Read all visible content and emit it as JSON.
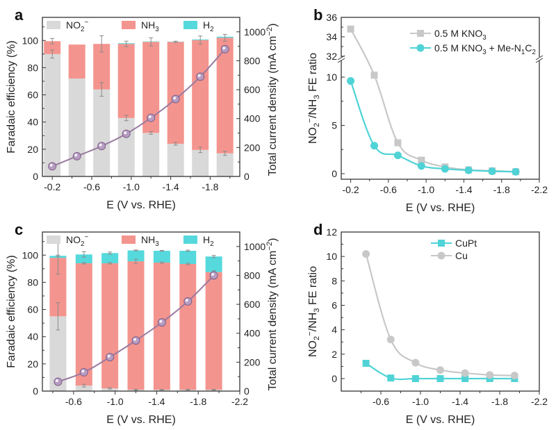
{
  "colors": {
    "no2": "#d9d9d9",
    "nh3": "#f4948e",
    "h2": "#55d9dc",
    "current_line": "#9a7aa0",
    "current_marker": "#b79cc2",
    "gray_series": "#c8c8c8",
    "teal_series": "#4fd3d6",
    "axis": "#333333"
  },
  "chart_data": [
    {
      "id": "a",
      "panel_label": "a",
      "type": "bar",
      "stacked": true,
      "title": "",
      "xlabel": "E (V vs. RHE)",
      "ylabel": "Faradaic efficiency (%)",
      "y2label": "Total current density (mA cm⁻²)",
      "xlim": [
        -0.1,
        -2.1
      ],
      "xticks": [
        "-0.2",
        "-0.6",
        "-1.0",
        "-1.4",
        "-1.8"
      ],
      "xtick_values": [
        -0.2,
        -0.6,
        -1.0,
        -1.4,
        -1.8
      ],
      "ylim": [
        0,
        117
      ],
      "yticks": [
        0,
        20,
        40,
        60,
        80,
        100
      ],
      "y2lim": [
        0,
        1100
      ],
      "y2ticks": [
        0,
        200,
        400,
        600,
        800,
        1000
      ],
      "legend": [
        "NO₂⁻",
        "NH₃",
        "H₂"
      ],
      "legend_placement": "top-left",
      "x": [
        -0.2,
        -0.45,
        -0.7,
        -0.95,
        -1.2,
        -1.45,
        -1.7,
        -1.95
      ],
      "series": [
        {
          "name": "NO2-",
          "values": [
            90,
            72,
            64,
            43,
            32,
            24,
            19.5,
            17
          ],
          "err": [
            3,
            0,
            5,
            2,
            1,
            1,
            2,
            1.5
          ]
        },
        {
          "name": "NH3",
          "values": [
            9.5,
            25,
            33.5,
            54.5,
            67,
            75,
            80.8,
            85
          ],
          "err": [
            2,
            0,
            6,
            2,
            3,
            0.5,
            3,
            2.5
          ]
        },
        {
          "name": "H2",
          "values": [
            0,
            0,
            0,
            0.5,
            0.3,
            0.2,
            0.5,
            0.8
          ]
        }
      ],
      "line": {
        "name": "Total current density",
        "axis": "right",
        "values": [
          70,
          140,
          210,
          295,
          405,
          535,
          690,
          880
        ]
      }
    },
    {
      "id": "b",
      "panel_label": "b",
      "type": "line",
      "title": "",
      "xlabel": "E (V vs. RHE)",
      "ylabel": "NO₂⁻/NH₃ FE ratio",
      "xlim": [
        -0.1,
        -2.2
      ],
      "xticks": [
        "-0.2",
        "-0.6",
        "-1.0",
        "-1.4",
        "-1.8",
        "-2.2"
      ],
      "xtick_values": [
        -0.2,
        -0.6,
        -1.0,
        -1.4,
        -1.8,
        -2.2
      ],
      "y_break": {
        "lower": [
          -0.4,
          12.5
        ],
        "upper": [
          32,
          36
        ]
      },
      "yticks_lower": [
        0,
        5,
        10
      ],
      "yticks_upper": [
        32,
        34,
        36
      ],
      "legend_placement": "top-right",
      "x": [
        -0.2,
        -0.45,
        -0.7,
        -0.95,
        -1.2,
        -1.45,
        -1.7,
        -1.95
      ],
      "series": [
        {
          "name": "0.5 M KNO₃",
          "marker": "square",
          "color_key": "gray_series",
          "values": [
            34.8,
            10.2,
            3.2,
            1.4,
            0.7,
            0.4,
            0.3,
            0.2
          ]
        },
        {
          "name": "0.5 M KNO₃ + Me-N₁C₂",
          "marker": "circle",
          "color_key": "teal_series",
          "values": [
            9.6,
            2.9,
            1.9,
            0.8,
            0.5,
            0.35,
            0.25,
            0.2
          ]
        }
      ]
    },
    {
      "id": "c",
      "panel_label": "c",
      "type": "bar",
      "stacked": true,
      "title": "",
      "xlabel": "E (V vs. RHE)",
      "ylabel": "Faradaic efficiency (%)",
      "y2label": "Total current density (mA cm⁻²)",
      "xlim": [
        -0.3,
        -2.2
      ],
      "xticks": [
        "-0.6",
        "-1.0",
        "-1.4",
        "-1.8",
        "-2.2"
      ],
      "xtick_values": [
        -0.6,
        -1.0,
        -1.4,
        -1.8,
        -2.2
      ],
      "ylim": [
        0,
        117
      ],
      "yticks": [
        0,
        20,
        40,
        60,
        80,
        100
      ],
      "y2lim": [
        0,
        1100
      ],
      "y2ticks": [
        0,
        200,
        400,
        600,
        800,
        1000
      ],
      "legend": [
        "NO₂⁻",
        "NH₃",
        "H₂"
      ],
      "legend_placement": "top-left",
      "x": [
        -0.45,
        -0.7,
        -0.95,
        -1.2,
        -1.45,
        -1.7,
        -1.95
      ],
      "series": [
        {
          "name": "NO2-",
          "values": [
            55,
            4,
            2,
            1,
            1,
            1,
            1
          ],
          "err": [
            10,
            1,
            0.5,
            0.3,
            0.3,
            0.3,
            0.3
          ]
        },
        {
          "name": "NH3",
          "values": [
            43,
            90,
            92,
            94.5,
            93.5,
            92.5,
            86.5
          ],
          "err": [
            12,
            0.5,
            0.5,
            1.5,
            0.5,
            0.5,
            1
          ]
        },
        {
          "name": "H2",
          "values": [
            1.5,
            6.5,
            7.5,
            8,
            8.7,
            9.7,
            11.5
          ],
          "err": [
            0.5,
            2,
            0.8,
            0.3,
            0.3,
            0.5,
            0.8
          ]
        }
      ],
      "line": {
        "name": "Total current density",
        "axis": "right",
        "values": [
          65,
          130,
          235,
          350,
          475,
          620,
          800
        ]
      }
    },
    {
      "id": "d",
      "panel_label": "d",
      "type": "line",
      "title": "",
      "xlabel": "E (V vs. RHE)",
      "ylabel": "NO₂⁻/NH₃ FE ratio",
      "xlim": [
        -0.2,
        -2.2
      ],
      "xticks": [
        "-0.6",
        "-1.0",
        "-1.4",
        "-1.8",
        "-2.2"
      ],
      "xtick_values": [
        -0.6,
        -1.0,
        -1.4,
        -1.8,
        -2.2
      ],
      "ylim": [
        -1,
        12
      ],
      "yticks": [
        0,
        2,
        4,
        6,
        8,
        10,
        12
      ],
      "legend_placement": "top-right",
      "x": [
        -0.45,
        -0.7,
        -0.95,
        -1.2,
        -1.45,
        -1.7,
        -1.95
      ],
      "series": [
        {
          "name": "CuPt",
          "marker": "square",
          "color_key": "teal_series",
          "values": [
            1.25,
            0.05,
            0,
            0,
            0,
            0,
            0
          ]
        },
        {
          "name": "Cu",
          "marker": "circle",
          "color_key": "gray_series",
          "values": [
            10.2,
            3.2,
            1.3,
            0.7,
            0.45,
            0.3,
            0.25
          ]
        }
      ]
    }
  ]
}
